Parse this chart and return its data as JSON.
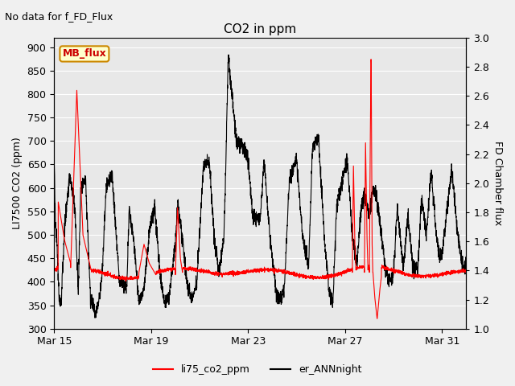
{
  "title": "CO2 in ppm",
  "top_left_text": "No data for f_FD_Flux",
  "ylabel_left": "LI7500 CO2 (ppm)",
  "ylabel_right": "FD Chamber flux",
  "ylim_left": [
    300,
    920
  ],
  "ylim_right": [
    1.0,
    3.0
  ],
  "yticks_left": [
    300,
    350,
    400,
    450,
    500,
    550,
    600,
    650,
    700,
    750,
    800,
    850,
    900
  ],
  "yticks_right": [
    1.0,
    1.2,
    1.4,
    1.6,
    1.8,
    2.0,
    2.2,
    2.4,
    2.6,
    2.8,
    3.0
  ],
  "xlabel_ticks": [
    "Mar 15",
    "Mar 19",
    "Mar 23",
    "Mar 27",
    "Mar 31"
  ],
  "x_tick_positions": [
    0,
    4,
    8,
    12,
    16
  ],
  "xlim": [
    0,
    17
  ],
  "legend_labels": [
    "li75_co2_ppm",
    "er_ANNnight"
  ],
  "legend_colors": [
    "red",
    "black"
  ],
  "fig_bg_color": "#f0f0f0",
  "plot_bg_color": "#e8e8e8",
  "grid_color": "#ffffff",
  "mb_flux_box_text": "MB_flux",
  "mb_flux_box_facecolor": "#ffffcc",
  "mb_flux_box_edgecolor": "#cc8800",
  "mb_flux_text_color": "#cc0000",
  "top_left_fontsize": 9,
  "title_fontsize": 11,
  "axis_label_fontsize": 9,
  "tick_fontsize": 9,
  "legend_fontsize": 9
}
